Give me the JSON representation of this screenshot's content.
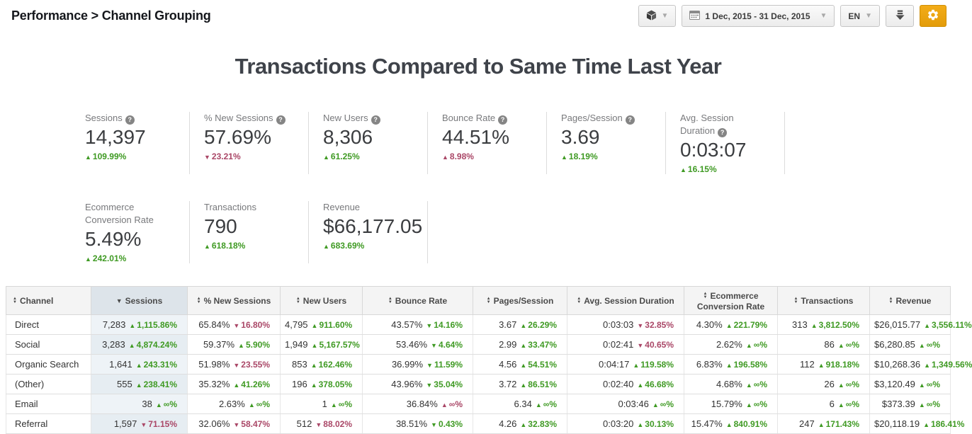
{
  "breadcrumb": "Performance > Channel Grouping",
  "toolbar": {
    "segment_button": {
      "icon": "cube-icon"
    },
    "date_range": "1 Dec, 2015 - 31 Dec, 2015",
    "language": "EN",
    "download_button": {
      "icon": "download-icon"
    },
    "settings_button": {
      "icon": "gear-icon"
    }
  },
  "title": "Transactions Compared to Same Time Last Year",
  "colors": {
    "positive": "#3f9a23",
    "negative": "#aa4767",
    "accent_orange": "#eda112",
    "sorted_column_bg": "#eef3f7",
    "header_bg": "#f4f4f4",
    "sorted_header_bg": "#dde4ea"
  },
  "kpi_rows": [
    [
      {
        "label": "Sessions",
        "help": true,
        "value": "14,397",
        "dir": "up",
        "delta": "109.99%",
        "tone": "good"
      },
      {
        "label": "% New Sessions",
        "help": true,
        "value": "57.69%",
        "dir": "down",
        "delta": "23.21%",
        "tone": "bad"
      },
      {
        "label": "New Users",
        "help": true,
        "value": "8,306",
        "dir": "up",
        "delta": "61.25%",
        "tone": "good"
      },
      {
        "label": "Bounce Rate",
        "help": true,
        "value": "44.51%",
        "dir": "up",
        "delta": "8.98%",
        "tone": "bad"
      },
      {
        "label": "Pages/Session",
        "help": true,
        "value": "3.69",
        "dir": "up",
        "delta": "18.19%",
        "tone": "good"
      },
      {
        "label": "Avg. Session Duration",
        "help": true,
        "value": "0:03:07",
        "dir": "up",
        "delta": "16.15%",
        "tone": "good"
      }
    ],
    [
      {
        "label": "Ecommerce Conversion Rate",
        "help": false,
        "value": "5.49%",
        "dir": "up",
        "delta": "242.01%",
        "tone": "good"
      },
      {
        "label": "Transactions",
        "help": false,
        "value": "790",
        "dir": "up",
        "delta": "618.18%",
        "tone": "good"
      },
      {
        "label": "Revenue",
        "help": false,
        "value": "$66,177.05",
        "dir": "up",
        "delta": "683.69%",
        "tone": "good"
      }
    ]
  ],
  "table": {
    "columns": [
      {
        "key": "channel",
        "label": "Channel",
        "sort": "both"
      },
      {
        "key": "sessions",
        "label": "Sessions",
        "sort": "desc",
        "active": true
      },
      {
        "key": "new-sessions-pct",
        "label": "% New Sessions",
        "sort": "both"
      },
      {
        "key": "new-users",
        "label": "New Users",
        "sort": "both"
      },
      {
        "key": "bounce-rate",
        "label": "Bounce Rate",
        "sort": "both"
      },
      {
        "key": "pages-session",
        "label": "Pages/Session",
        "sort": "both"
      },
      {
        "key": "avg-session-duration",
        "label": "Avg. Session Duration",
        "sort": "both"
      },
      {
        "key": "ecommerce-conversion-rate",
        "label": "Ecommerce Conversion Rate",
        "sort": "both"
      },
      {
        "key": "transactions",
        "label": "Transactions",
        "sort": "both"
      },
      {
        "key": "revenue",
        "label": "Revenue",
        "sort": "both"
      }
    ],
    "rows": [
      {
        "channel": "Direct",
        "cells": [
          {
            "v": "7,283",
            "dir": "up",
            "d": "1,115.86%",
            "tone": "good"
          },
          {
            "v": "65.84%",
            "dir": "down",
            "d": "16.80%",
            "tone": "bad"
          },
          {
            "v": "4,795",
            "dir": "up",
            "d": "911.60%",
            "tone": "good"
          },
          {
            "v": "43.57%",
            "dir": "down",
            "d": "14.16%",
            "tone": "good"
          },
          {
            "v": "3.67",
            "dir": "up",
            "d": "26.29%",
            "tone": "good"
          },
          {
            "v": "0:03:03",
            "dir": "down",
            "d": "32.85%",
            "tone": "bad"
          },
          {
            "v": "4.30%",
            "dir": "up",
            "d": "221.79%",
            "tone": "good"
          },
          {
            "v": "313",
            "dir": "up",
            "d": "3,812.50%",
            "tone": "good"
          },
          {
            "v": "$26,015.77",
            "dir": "up",
            "d": "3,556.11%",
            "tone": "good"
          }
        ]
      },
      {
        "channel": "Social",
        "cells": [
          {
            "v": "3,283",
            "dir": "up",
            "d": "4,874.24%",
            "tone": "good"
          },
          {
            "v": "59.37%",
            "dir": "up",
            "d": "5.90%",
            "tone": "good"
          },
          {
            "v": "1,949",
            "dir": "up",
            "d": "5,167.57%",
            "tone": "good"
          },
          {
            "v": "53.46%",
            "dir": "down",
            "d": "4.64%",
            "tone": "good"
          },
          {
            "v": "2.99",
            "dir": "up",
            "d": "33.47%",
            "tone": "good"
          },
          {
            "v": "0:02:41",
            "dir": "down",
            "d": "40.65%",
            "tone": "bad"
          },
          {
            "v": "2.62%",
            "dir": "up",
            "d": "∞%",
            "tone": "good"
          },
          {
            "v": "86",
            "dir": "up",
            "d": "∞%",
            "tone": "good"
          },
          {
            "v": "$6,280.85",
            "dir": "up",
            "d": "∞%",
            "tone": "good"
          }
        ]
      },
      {
        "channel": "Organic Search",
        "cells": [
          {
            "v": "1,641",
            "dir": "up",
            "d": "243.31%",
            "tone": "good"
          },
          {
            "v": "51.98%",
            "dir": "down",
            "d": "23.55%",
            "tone": "bad"
          },
          {
            "v": "853",
            "dir": "up",
            "d": "162.46%",
            "tone": "good"
          },
          {
            "v": "36.99%",
            "dir": "down",
            "d": "11.59%",
            "tone": "good"
          },
          {
            "v": "4.56",
            "dir": "up",
            "d": "54.51%",
            "tone": "good"
          },
          {
            "v": "0:04:17",
            "dir": "up",
            "d": "119.58%",
            "tone": "good"
          },
          {
            "v": "6.83%",
            "dir": "up",
            "d": "196.58%",
            "tone": "good"
          },
          {
            "v": "112",
            "dir": "up",
            "d": "918.18%",
            "tone": "good"
          },
          {
            "v": "$10,268.36",
            "dir": "up",
            "d": "1,349.56%",
            "tone": "good"
          }
        ]
      },
      {
        "channel": "(Other)",
        "cells": [
          {
            "v": "555",
            "dir": "up",
            "d": "238.41%",
            "tone": "good"
          },
          {
            "v": "35.32%",
            "dir": "up",
            "d": "41.26%",
            "tone": "good"
          },
          {
            "v": "196",
            "dir": "up",
            "d": "378.05%",
            "tone": "good"
          },
          {
            "v": "43.96%",
            "dir": "down",
            "d": "35.04%",
            "tone": "good"
          },
          {
            "v": "3.72",
            "dir": "up",
            "d": "86.51%",
            "tone": "good"
          },
          {
            "v": "0:02:40",
            "dir": "up",
            "d": "46.68%",
            "tone": "good"
          },
          {
            "v": "4.68%",
            "dir": "up",
            "d": "∞%",
            "tone": "good"
          },
          {
            "v": "26",
            "dir": "up",
            "d": "∞%",
            "tone": "good"
          },
          {
            "v": "$3,120.49",
            "dir": "up",
            "d": "∞%",
            "tone": "good"
          }
        ]
      },
      {
        "channel": "Email",
        "cells": [
          {
            "v": "38",
            "dir": "up",
            "d": "∞%",
            "tone": "good"
          },
          {
            "v": "2.63%",
            "dir": "up",
            "d": "∞%",
            "tone": "good"
          },
          {
            "v": "1",
            "dir": "up",
            "d": "∞%",
            "tone": "good"
          },
          {
            "v": "36.84%",
            "dir": "up",
            "d": "∞%",
            "tone": "bad"
          },
          {
            "v": "6.34",
            "dir": "up",
            "d": "∞%",
            "tone": "good"
          },
          {
            "v": "0:03:46",
            "dir": "up",
            "d": "∞%",
            "tone": "good"
          },
          {
            "v": "15.79%",
            "dir": "up",
            "d": "∞%",
            "tone": "good"
          },
          {
            "v": "6",
            "dir": "up",
            "d": "∞%",
            "tone": "good"
          },
          {
            "v": "$373.39",
            "dir": "up",
            "d": "∞%",
            "tone": "good"
          }
        ]
      },
      {
        "channel": "Referral",
        "cells": [
          {
            "v": "1,597",
            "dir": "down",
            "d": "71.15%",
            "tone": "bad"
          },
          {
            "v": "32.06%",
            "dir": "down",
            "d": "58.47%",
            "tone": "bad"
          },
          {
            "v": "512",
            "dir": "down",
            "d": "88.02%",
            "tone": "bad"
          },
          {
            "v": "38.51%",
            "dir": "down",
            "d": "0.43%",
            "tone": "good"
          },
          {
            "v": "4.26",
            "dir": "up",
            "d": "32.83%",
            "tone": "good"
          },
          {
            "v": "0:03:20",
            "dir": "up",
            "d": "30.13%",
            "tone": "good"
          },
          {
            "v": "15.47%",
            "dir": "up",
            "d": "840.91%",
            "tone": "good"
          },
          {
            "v": "247",
            "dir": "up",
            "d": "171.43%",
            "tone": "good"
          },
          {
            "v": "$20,118.19",
            "dir": "up",
            "d": "186.41%",
            "tone": "good"
          }
        ]
      }
    ]
  }
}
